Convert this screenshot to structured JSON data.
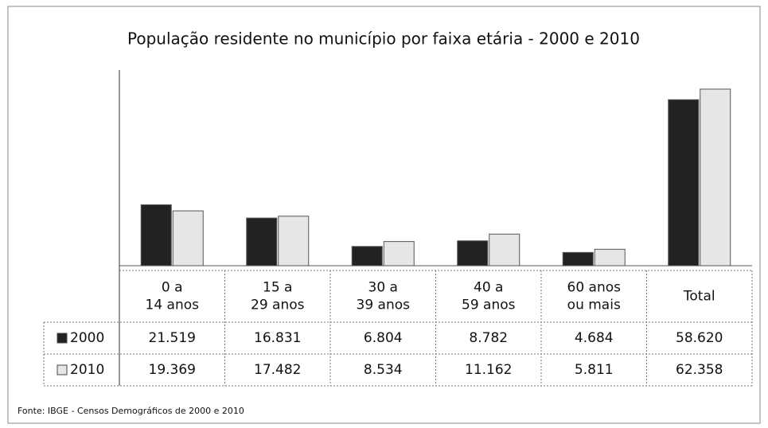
{
  "chart_data": {
    "type": "bar",
    "title": "População residente no município por faixa etária - 2000 e 2010",
    "categories": [
      "0 a 14 anos",
      "15 a 29 anos",
      "30 a 39 anos",
      "40 a 59 anos",
      "60 anos ou mais",
      "Total"
    ],
    "series": [
      {
        "name": "2000",
        "color": "#222222",
        "values": [
          21519,
          16831,
          6804,
          8782,
          4684,
          58620
        ],
        "value_labels": [
          "21.519",
          "16.831",
          "6.804",
          "8.782",
          "4.684",
          "58.620"
        ]
      },
      {
        "name": "2010",
        "color": "#e6e6e6",
        "values": [
          19369,
          17482,
          8534,
          11162,
          5811,
          62358
        ],
        "value_labels": [
          "19.369",
          "17.482",
          "8.534",
          "11.162",
          "5.811",
          "62.358"
        ]
      }
    ],
    "source": "Fonte: IBGE - Censos Demográficos de 2000 e 2010"
  }
}
